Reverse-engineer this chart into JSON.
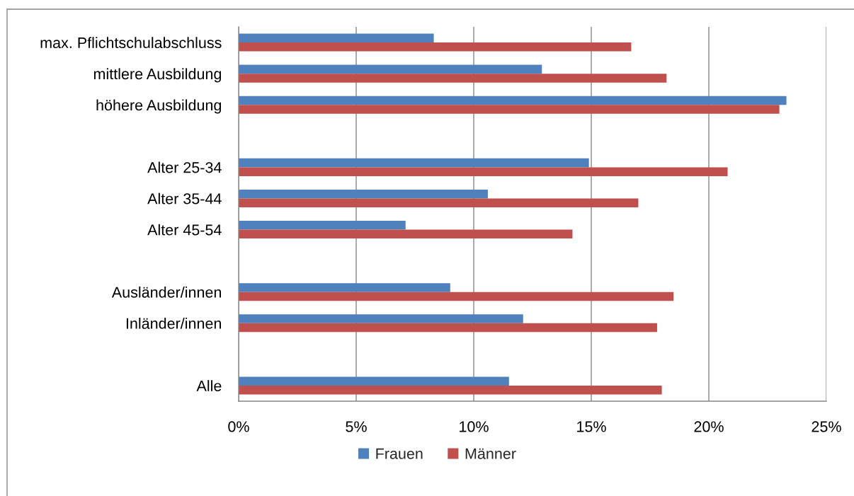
{
  "chart_data": {
    "type": "bar",
    "orientation": "horizontal",
    "categories": [
      "max. Pflichtschulabschluss",
      "mittlere Ausbildung",
      "höhere Ausbildung",
      null,
      "Alter 25-34",
      "Alter 35-44",
      "Alter 45-54",
      null,
      "Ausländer/innen",
      "Inländer/innen",
      null,
      "Alle"
    ],
    "series": [
      {
        "name": "Frauen",
        "color": "#4f81bd",
        "values": [
          8.3,
          12.9,
          23.3,
          null,
          14.9,
          10.6,
          7.1,
          null,
          9.0,
          12.1,
          null,
          11.5
        ]
      },
      {
        "name": "Männer",
        "color": "#c0504d",
        "values": [
          16.7,
          18.2,
          23.0,
          null,
          20.8,
          17.0,
          14.2,
          null,
          18.5,
          17.8,
          null,
          18.0
        ]
      }
    ],
    "xlim": [
      0,
      25
    ],
    "xticks": [
      {
        "value": 0,
        "label": "0%"
      },
      {
        "value": 5,
        "label": "5%"
      },
      {
        "value": 10,
        "label": "10%"
      },
      {
        "value": 15,
        "label": "15%"
      },
      {
        "value": 20,
        "label": "20%"
      },
      {
        "value": 25,
        "label": "25%"
      }
    ],
    "grid": "x",
    "legend": "bottom"
  }
}
